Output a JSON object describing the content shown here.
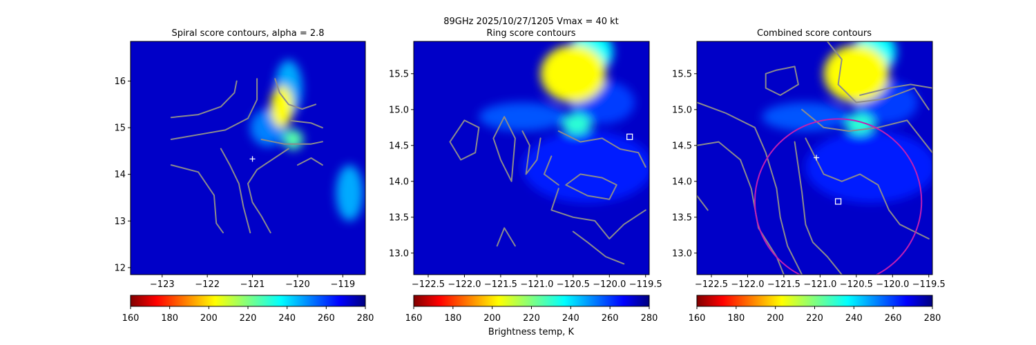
{
  "figure": {
    "suptitle_line1": "89GHz  2025/10/27/1205    Vmax = 40 kt",
    "colorbar_label": "Brightness temp, K",
    "colormap": "jet_r",
    "colors": {
      "contour": "#8c8c8c",
      "circle": "#c21fb3",
      "marker": "#ffffff",
      "background_field": "#0000c8"
    }
  },
  "chart_data": [
    {
      "type": "heatmap",
      "title": "Spiral score contours, alpha =  2.8",
      "xlim": [
        -123.7,
        -118.5
      ],
      "ylim": [
        11.85,
        16.85
      ],
      "xticks": [
        -123,
        -122,
        -121,
        -120,
        -119
      ],
      "xtick_labels": [
        "−123",
        "−122",
        "−121",
        "−120",
        "−119"
      ],
      "yticks": [
        12,
        13,
        14,
        15,
        16
      ],
      "ytick_labels": [
        "12",
        "13",
        "14",
        "15",
        "16"
      ],
      "markers": [
        {
          "kind": "plus",
          "x": -121.0,
          "y": 14.33
        }
      ],
      "hot_spots": [
        {
          "x": -120.35,
          "y": 15.45,
          "tb": 205,
          "rx": 0.25,
          "ry": 0.45
        },
        {
          "x": -120.2,
          "y": 15.85,
          "tb": 245,
          "rx": 0.3,
          "ry": 0.6
        },
        {
          "x": -120.65,
          "y": 15.0,
          "tb": 250,
          "rx": 0.4,
          "ry": 0.4
        },
        {
          "x": -120.1,
          "y": 14.75,
          "tb": 225,
          "rx": 0.22,
          "ry": 0.22
        },
        {
          "x": -118.85,
          "y": 13.6,
          "tb": 245,
          "rx": 0.3,
          "ry": 0.6
        }
      ],
      "contours": [
        [
          [
            -122.8,
            15.22
          ],
          [
            -122.2,
            15.28
          ],
          [
            -121.7,
            15.45
          ],
          [
            -121.4,
            15.75
          ],
          [
            -121.35,
            16.0
          ]
        ],
        [
          [
            -122.8,
            14.75
          ],
          [
            -122.2,
            14.85
          ],
          [
            -121.6,
            14.95
          ],
          [
            -121.1,
            15.2
          ],
          [
            -120.9,
            15.6
          ],
          [
            -120.9,
            16.05
          ]
        ],
        [
          [
            -122.8,
            14.2
          ],
          [
            -122.2,
            14.05
          ],
          [
            -121.85,
            13.55
          ],
          [
            -121.8,
            12.95
          ],
          [
            -121.65,
            12.75
          ]
        ],
        [
          [
            -121.7,
            14.55
          ],
          [
            -121.5,
            14.2
          ],
          [
            -121.3,
            13.8
          ],
          [
            -121.2,
            13.3
          ],
          [
            -121.05,
            12.75
          ]
        ],
        [
          [
            -120.5,
            16.05
          ],
          [
            -120.4,
            15.75
          ],
          [
            -120.2,
            15.5
          ],
          [
            -119.9,
            15.4
          ],
          [
            -119.6,
            15.5
          ]
        ],
        [
          [
            -120.15,
            15.15
          ],
          [
            -119.7,
            15.1
          ],
          [
            -119.45,
            15.0
          ]
        ],
        [
          [
            -120.8,
            14.75
          ],
          [
            -120.3,
            14.65
          ],
          [
            -119.7,
            14.65
          ],
          [
            -119.45,
            14.7
          ]
        ],
        [
          [
            -120.2,
            14.55
          ],
          [
            -120.9,
            14.1
          ],
          [
            -121.1,
            13.8
          ],
          [
            -121.0,
            13.4
          ],
          [
            -120.8,
            13.1
          ],
          [
            -120.6,
            12.75
          ]
        ],
        [
          [
            -120.0,
            14.2
          ],
          [
            -119.7,
            14.35
          ],
          [
            -119.45,
            14.2
          ]
        ]
      ]
    },
    {
      "type": "heatmap",
      "title": "Ring score contours",
      "xlim": [
        -122.7,
        -119.45
      ],
      "ylim": [
        12.7,
        15.95
      ],
      "xticks": [
        -122.5,
        -122.0,
        -121.5,
        -121.0,
        -120.5,
        -120.0,
        -119.5
      ],
      "xtick_labels": [
        "−122.5",
        "−122.0",
        "−121.5",
        "−121.0",
        "−120.5",
        "−120.0",
        "−119.5"
      ],
      "yticks": [
        13.0,
        13.5,
        14.0,
        14.5,
        15.0,
        15.5
      ],
      "ytick_labels": [
        "13.0",
        "13.5",
        "14.0",
        "14.5",
        "15.0",
        "15.5"
      ],
      "markers": [
        {
          "kind": "square",
          "x": -119.72,
          "y": 14.62
        }
      ],
      "hot_spots": [
        {
          "x": -120.5,
          "y": 15.5,
          "tb": 205,
          "rx": 0.45,
          "ry": 0.4
        },
        {
          "x": -120.25,
          "y": 15.8,
          "tb": 235,
          "rx": 0.3,
          "ry": 0.3
        },
        {
          "x": -120.45,
          "y": 14.8,
          "tb": 230,
          "rx": 0.2,
          "ry": 0.15
        },
        {
          "x": -121.2,
          "y": 14.9,
          "tb": 255,
          "rx": 0.6,
          "ry": 0.2
        },
        {
          "x": -120.1,
          "y": 15.1,
          "tb": 258,
          "rx": 0.45,
          "ry": 0.3
        },
        {
          "x": -120.3,
          "y": 14.2,
          "tb": 262,
          "rx": 0.9,
          "ry": 0.5
        }
      ],
      "contours": [
        [
          [
            -122.2,
            14.55
          ],
          [
            -122.0,
            14.85
          ],
          [
            -121.8,
            14.75
          ],
          [
            -121.85,
            14.4
          ],
          [
            -122.05,
            14.3
          ],
          [
            -122.2,
            14.55
          ]
        ],
        [
          [
            -121.6,
            14.6
          ],
          [
            -121.45,
            14.9
          ],
          [
            -121.3,
            14.6
          ],
          [
            -121.35,
            14.0
          ],
          [
            -121.5,
            14.3
          ],
          [
            -121.6,
            14.6
          ]
        ],
        [
          [
            -121.2,
            14.7
          ],
          [
            -121.1,
            14.5
          ],
          [
            -121.15,
            14.1
          ],
          [
            -121.0,
            14.3
          ],
          [
            -120.95,
            14.6
          ]
        ],
        [
          [
            -120.7,
            14.7
          ],
          [
            -120.4,
            14.55
          ],
          [
            -120.1,
            14.6
          ],
          [
            -119.85,
            14.45
          ],
          [
            -119.6,
            14.4
          ],
          [
            -119.5,
            14.2
          ]
        ],
        [
          [
            -120.6,
            13.95
          ],
          [
            -120.4,
            14.1
          ],
          [
            -120.1,
            14.05
          ],
          [
            -119.9,
            13.95
          ],
          [
            -120.0,
            13.75
          ],
          [
            -120.3,
            13.8
          ],
          [
            -120.6,
            13.95
          ]
        ],
        [
          [
            -120.7,
            13.9
          ],
          [
            -120.8,
            13.6
          ],
          [
            -120.5,
            13.5
          ],
          [
            -120.2,
            13.45
          ],
          [
            -120.0,
            13.2
          ],
          [
            -119.8,
            13.4
          ],
          [
            -119.5,
            13.6
          ]
        ],
        [
          [
            -120.5,
            13.3
          ],
          [
            -120.3,
            13.15
          ],
          [
            -120.05,
            12.95
          ],
          [
            -119.8,
            12.85
          ]
        ],
        [
          [
            -121.55,
            13.1
          ],
          [
            -121.45,
            13.35
          ],
          [
            -121.3,
            13.1
          ]
        ],
        [
          [
            -120.8,
            14.35
          ],
          [
            -120.9,
            14.1
          ],
          [
            -120.7,
            13.95
          ]
        ]
      ]
    },
    {
      "type": "heatmap",
      "title": "Combined score contours",
      "xlim": [
        -122.7,
        -119.45
      ],
      "ylim": [
        12.7,
        15.95
      ],
      "xticks": [
        -122.5,
        -122.0,
        -121.5,
        -121.0,
        -120.5,
        -120.0,
        -119.5
      ],
      "xtick_labels": [
        "−122.5",
        "−122.0",
        "−121.5",
        "−121.0",
        "−120.5",
        "−120.0",
        "−119.5"
      ],
      "yticks": [
        13.0,
        13.5,
        14.0,
        14.5,
        15.0,
        15.5
      ],
      "ytick_labels": [
        "13.0",
        "13.5",
        "14.0",
        "14.5",
        "15.0",
        "15.5"
      ],
      "markers": [
        {
          "kind": "plus",
          "x": -121.05,
          "y": 14.33
        },
        {
          "kind": "square",
          "x": -120.75,
          "y": 13.72
        }
      ],
      "circle": {
        "cx": -120.75,
        "cy": 13.72,
        "r": 1.15
      },
      "hot_spots": [
        {
          "x": -120.5,
          "y": 15.5,
          "tb": 205,
          "rx": 0.45,
          "ry": 0.4
        },
        {
          "x": -120.25,
          "y": 15.8,
          "tb": 235,
          "rx": 0.3,
          "ry": 0.3
        },
        {
          "x": -120.45,
          "y": 14.8,
          "tb": 230,
          "rx": 0.2,
          "ry": 0.15
        },
        {
          "x": -121.2,
          "y": 14.9,
          "tb": 255,
          "rx": 0.6,
          "ry": 0.2
        },
        {
          "x": -120.1,
          "y": 15.1,
          "tb": 258,
          "rx": 0.45,
          "ry": 0.3
        },
        {
          "x": -120.3,
          "y": 14.2,
          "tb": 262,
          "rx": 0.9,
          "ry": 0.5
        }
      ],
      "contours": [
        [
          [
            -122.7,
            15.1
          ],
          [
            -122.3,
            14.95
          ],
          [
            -121.9,
            14.75
          ],
          [
            -121.75,
            14.4
          ],
          [
            -121.6,
            13.9
          ],
          [
            -121.55,
            13.5
          ],
          [
            -121.45,
            13.1
          ],
          [
            -121.25,
            12.7
          ]
        ],
        [
          [
            -122.7,
            14.5
          ],
          [
            -122.4,
            14.55
          ],
          [
            -122.1,
            14.3
          ],
          [
            -121.95,
            13.9
          ],
          [
            -121.85,
            13.35
          ],
          [
            -121.6,
            12.95
          ],
          [
            -121.5,
            12.7
          ]
        ],
        [
          [
            -121.35,
            14.55
          ],
          [
            -121.3,
            14.2
          ],
          [
            -121.25,
            13.85
          ],
          [
            -121.2,
            13.4
          ],
          [
            -121.1,
            13.15
          ],
          [
            -120.9,
            12.95
          ],
          [
            -120.7,
            12.7
          ]
        ],
        [
          [
            -121.2,
            14.6
          ],
          [
            -120.95,
            14.1
          ],
          [
            -120.7,
            14.0
          ],
          [
            -120.45,
            14.1
          ],
          [
            -120.2,
            13.95
          ],
          [
            -120.05,
            13.6
          ],
          [
            -119.9,
            13.4
          ],
          [
            -119.7,
            13.3
          ],
          [
            -119.5,
            13.2
          ]
        ],
        [
          [
            -121.25,
            15.0
          ],
          [
            -120.95,
            14.75
          ],
          [
            -120.6,
            14.7
          ],
          [
            -120.2,
            14.75
          ],
          [
            -119.8,
            14.85
          ],
          [
            -119.45,
            14.4
          ]
        ],
        [
          [
            -120.9,
            15.95
          ],
          [
            -120.7,
            15.7
          ],
          [
            -120.75,
            15.35
          ],
          [
            -120.5,
            15.1
          ],
          [
            -120.1,
            15.15
          ],
          [
            -119.7,
            15.3
          ],
          [
            -119.5,
            15.0
          ]
        ],
        [
          [
            -120.45,
            15.2
          ],
          [
            -120.05,
            15.3
          ],
          [
            -119.75,
            15.35
          ],
          [
            -119.45,
            15.3
          ]
        ],
        [
          [
            -121.6,
            15.55
          ],
          [
            -121.35,
            15.6
          ],
          [
            -121.3,
            15.35
          ],
          [
            -121.55,
            15.2
          ],
          [
            -121.75,
            15.3
          ],
          [
            -121.75,
            15.5
          ],
          [
            -121.6,
            15.55
          ]
        ],
        [
          [
            -122.7,
            13.8
          ],
          [
            -122.55,
            13.6
          ]
        ]
      ]
    }
  ],
  "colorbar": {
    "min": 160,
    "max": 280,
    "ticks": [
      160,
      180,
      200,
      220,
      240,
      260,
      280
    ],
    "tick_labels": [
      "160",
      "180",
      "200",
      "220",
      "240",
      "260",
      "280"
    ]
  }
}
